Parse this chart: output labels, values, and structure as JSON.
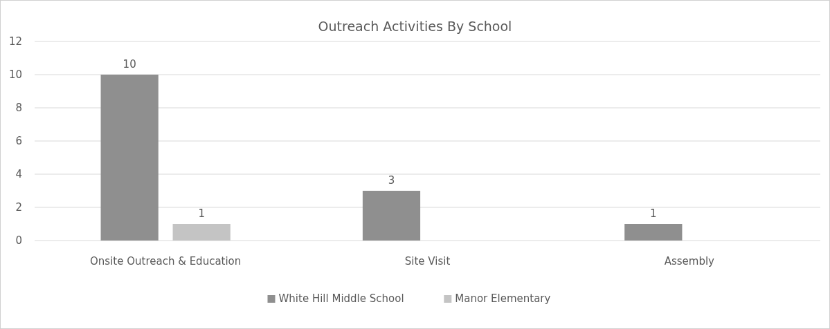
{
  "chart_data": {
    "type": "bar",
    "title": "Outreach Activities By School",
    "categories": [
      "Onsite Outreach & Education",
      "Site Visit",
      "Assembly"
    ],
    "series": [
      {
        "name": "White Hill Middle School",
        "color": "#8f8f8f",
        "values": [
          10,
          3,
          1
        ]
      },
      {
        "name": "Manor Elementary",
        "color": "#c4c4c4",
        "values": [
          1,
          null,
          null
        ]
      }
    ],
    "ylim": [
      0,
      12
    ],
    "yticks": [
      0,
      2,
      4,
      6,
      8,
      10,
      12
    ],
    "grid": "y",
    "legend": "bottom",
    "data_labels": true
  }
}
